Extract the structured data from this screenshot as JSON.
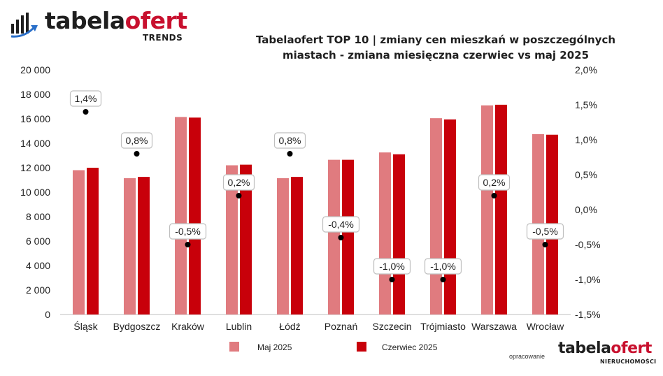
{
  "brand": {
    "logo_word_part1": "tabela",
    "logo_word_part2": "ofert",
    "logo_sub": "TRENDS",
    "icon": "bar-chart-growth-icon"
  },
  "title_line1": "Tabelaofert TOP 10 | zmiany cen mieszkań w poszczególnych",
  "title_line2": "miastach - zmiana miesięczna czerwiec vs maj 2025",
  "footer": {
    "credit": "opracowanie",
    "logo_word_part1": "tabela",
    "logo_word_part2": "ofert",
    "logo_sub": "NIERUCHOMOŚCI"
  },
  "colors": {
    "maj": "#e07b7f",
    "czerwiec": "#c8000a",
    "brand_red": "#c8102e",
    "text": "#1f1f1f"
  },
  "chart_data": {
    "type": "bar",
    "categories": [
      "Śląsk",
      "Bydgoszcz",
      "Kraków",
      "Lublin",
      "Łódź",
      "Poznań",
      "Szczecin",
      "Trójmiasto",
      "Warszawa",
      "Wrocław"
    ],
    "series": [
      {
        "name": "Maj 2025",
        "axis": "left",
        "values": [
          11800,
          11150,
          16150,
          12200,
          11150,
          12650,
          13250,
          16050,
          17100,
          14750
        ]
      },
      {
        "name": "Czerwiec 2025",
        "axis": "left",
        "values": [
          12000,
          11250,
          16100,
          12250,
          11250,
          12650,
          13100,
          15950,
          17150,
          14700
        ]
      }
    ],
    "change": {
      "type": "scatter",
      "axis": "right",
      "values": [
        1.4,
        0.8,
        -0.5,
        0.2,
        0.8,
        -0.4,
        -1.0,
        -1.0,
        0.2,
        -0.5
      ],
      "labels": [
        "1,4%",
        "0,8%",
        "-0,5%",
        "0,2%",
        "0,8%",
        "-0,4%",
        "-1,0%",
        "-1,0%",
        "0,2%",
        "-0,5%"
      ]
    },
    "y_left": {
      "range": [
        0,
        20000
      ],
      "ticks": [
        0,
        2000,
        4000,
        6000,
        8000,
        10000,
        12000,
        14000,
        16000,
        18000,
        20000
      ],
      "tick_labels": [
        "0",
        "2 000",
        "4 000",
        "6 000",
        "8 000",
        "10 000",
        "12 000",
        "14 000",
        "16 000",
        "18 000",
        "20 000"
      ]
    },
    "y_right": {
      "range": [
        -1.5,
        2.0
      ],
      "ticks": [
        -1.5,
        -1.0,
        -0.5,
        0.0,
        0.5,
        1.0,
        1.5,
        2.0
      ],
      "tick_labels": [
        "-1,5%",
        "-1,0%",
        "-0,5%",
        "0,0%",
        "0,5%",
        "1,0%",
        "1,5%",
        "2,0%"
      ]
    },
    "legend_position": "bottom",
    "grid": false
  }
}
